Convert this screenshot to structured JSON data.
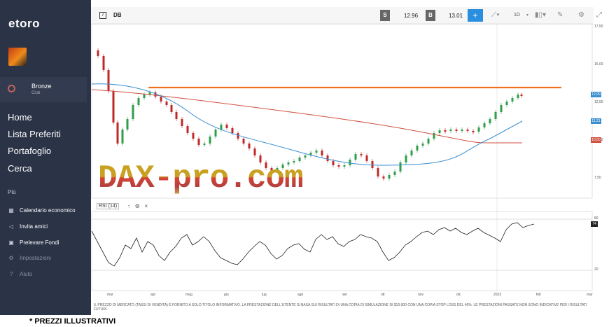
{
  "app": {
    "logo_text": "etoro"
  },
  "club": {
    "name": "Bronze",
    "sub": "Club"
  },
  "nav_main": [
    {
      "label": "Home"
    },
    {
      "label": "Lista Preferiti"
    },
    {
      "label": "Portafoglio"
    },
    {
      "label": "Cerca"
    }
  ],
  "nav_section_label": "Più",
  "nav_more": [
    {
      "label": "Calendario economico",
      "icon": "calendar-icon"
    },
    {
      "label": "Invita amici",
      "icon": "megaphone-icon"
    },
    {
      "label": "Prelevare Fondi",
      "icon": "wallet-icon"
    },
    {
      "label": "Impostazioni",
      "icon": "gear-icon"
    },
    {
      "label": "Aiuto",
      "icon": "help-icon"
    }
  ],
  "toolbar": {
    "symbol": "DB",
    "sell_badge": "S",
    "sell_price": "12.96",
    "buy_badge": "B",
    "buy_price": "13.01",
    "period": "1D"
  },
  "chart": {
    "y_ticks": [
      "17,50",
      "15,00",
      "12,50",
      "10,00",
      "7,50"
    ],
    "last_price_label": "12,99",
    "ma_blue_label": "11,21",
    "ma_red_label": "10,00",
    "rsi_label": "RSI (14)",
    "rsi_ticks": [
      "80",
      "20"
    ],
    "rsi_value": "74",
    "x_labels": [
      "mar",
      "apr",
      "mag",
      "giu",
      "lug",
      "ago",
      "set",
      "ott",
      "nov",
      "dic",
      "2023",
      "feb",
      "mar"
    ],
    "watermark": "DAX-pro.com",
    "colors": {
      "resistance": "#f07020",
      "ma_blue": "#3a8fd0",
      "ma_red": "#d05040",
      "up": "#2e9e4a",
      "down": "#c02828"
    }
  },
  "disclaimer": "IL PREZZO DI MERCATO (TASSI DI VENDITA) È FORNITO A SOLO TITOLO INFORMATIVO. LA PRESTAZIONE DELL'UTENTE SI BASA SUI RISULTATI DI UNA COPIA DI SIMULAZIONE DI $10.000 CON UNA COPIA STOP LOSS DEL 40%. LE PRESTAZIONI PASSATE NON SONO INDICATIVE PER I RISULTATI FUTURI.",
  "footer_note": "* PREZZI ILLUSTRATIVI"
}
